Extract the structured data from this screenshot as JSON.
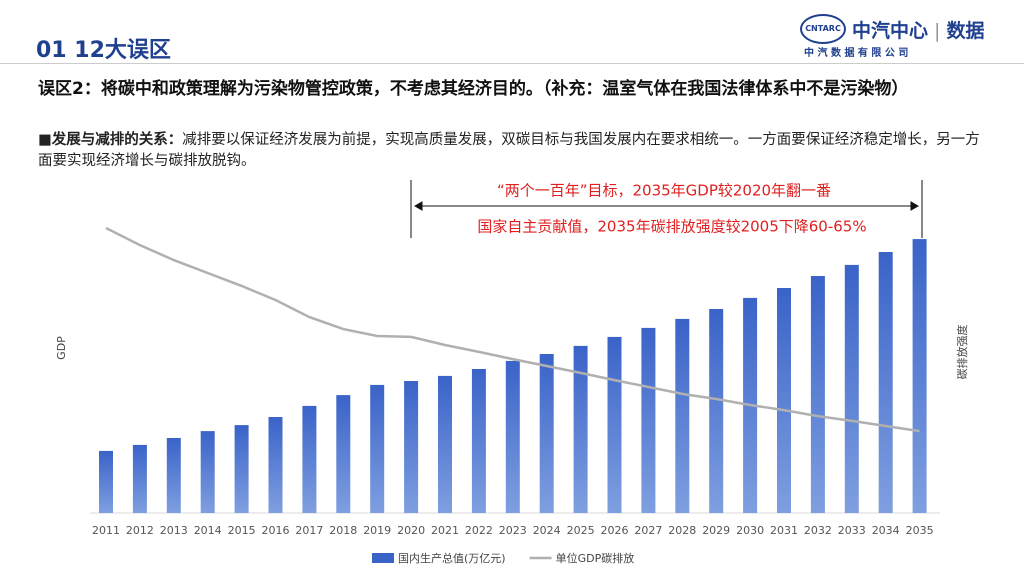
{
  "header": {
    "title": "01 12大误区",
    "logo_mark": "CNTARC",
    "logo_text": "中汽中心",
    "logo_sub": "数据",
    "company": "中 汽 数 据 有 限 公 司"
  },
  "body": {
    "heading": "误区2：将碳中和政策理解为污染物管控政策，不考虑其经济目的。（补充：温室气体在我国法律体系中不是污染物）",
    "point_label": "■发展与减排的关系：",
    "point_text": "减排要以保证经济发展为前提，实现高质量发展，双碳目标与我国发展内在要求相统一。一方面要保证经济稳定增长，另一方面要实现经济增长与碳排放脱钩。"
  },
  "chart_data": {
    "type": "bar",
    "y_label": "GDP",
    "y2_label": "碳排放强度",
    "annotations": [
      "“两个一百年”目标，2035年GDP较2020年翻一番",
      "国家自主贡献值，2035年碳排放强度较2005下降60-65%"
    ],
    "categories": [
      "2011",
      "2012",
      "2013",
      "2014",
      "2015",
      "2016",
      "2017",
      "2018",
      "2019",
      "2020",
      "2021",
      "2022",
      "2023",
      "2024",
      "2025",
      "2026",
      "2027",
      "2028",
      "2029",
      "2030",
      "2031",
      "2032",
      "2033",
      "2034",
      "2035"
    ],
    "ylim": [
      0,
      100
    ],
    "y2lim": [
      0,
      100
    ],
    "series": [
      {
        "name": "国内生产总值(万亿元)",
        "type": "bar",
        "color": "#3a63c8",
        "values": [
          20.7,
          22.7,
          25,
          27.3,
          29.3,
          32,
          35.7,
          39.3,
          42.7,
          44,
          45.7,
          48,
          50.7,
          53,
          55.7,
          58.7,
          61.7,
          64.7,
          68,
          71.7,
          75,
          79,
          82.7,
          87,
          91.3
        ]
      },
      {
        "name": "单位GDP碳排放",
        "type": "line",
        "axis": "y2",
        "color": "#b0b0b0",
        "values": [
          95,
          89.3,
          84.3,
          80,
          75.7,
          71,
          65.3,
          61.3,
          59,
          58.7,
          56,
          53.7,
          51.3,
          49,
          46.7,
          44.3,
          42,
          39.7,
          38,
          36,
          34.3,
          32.3,
          30.7,
          29,
          27.3
        ]
      }
    ]
  }
}
